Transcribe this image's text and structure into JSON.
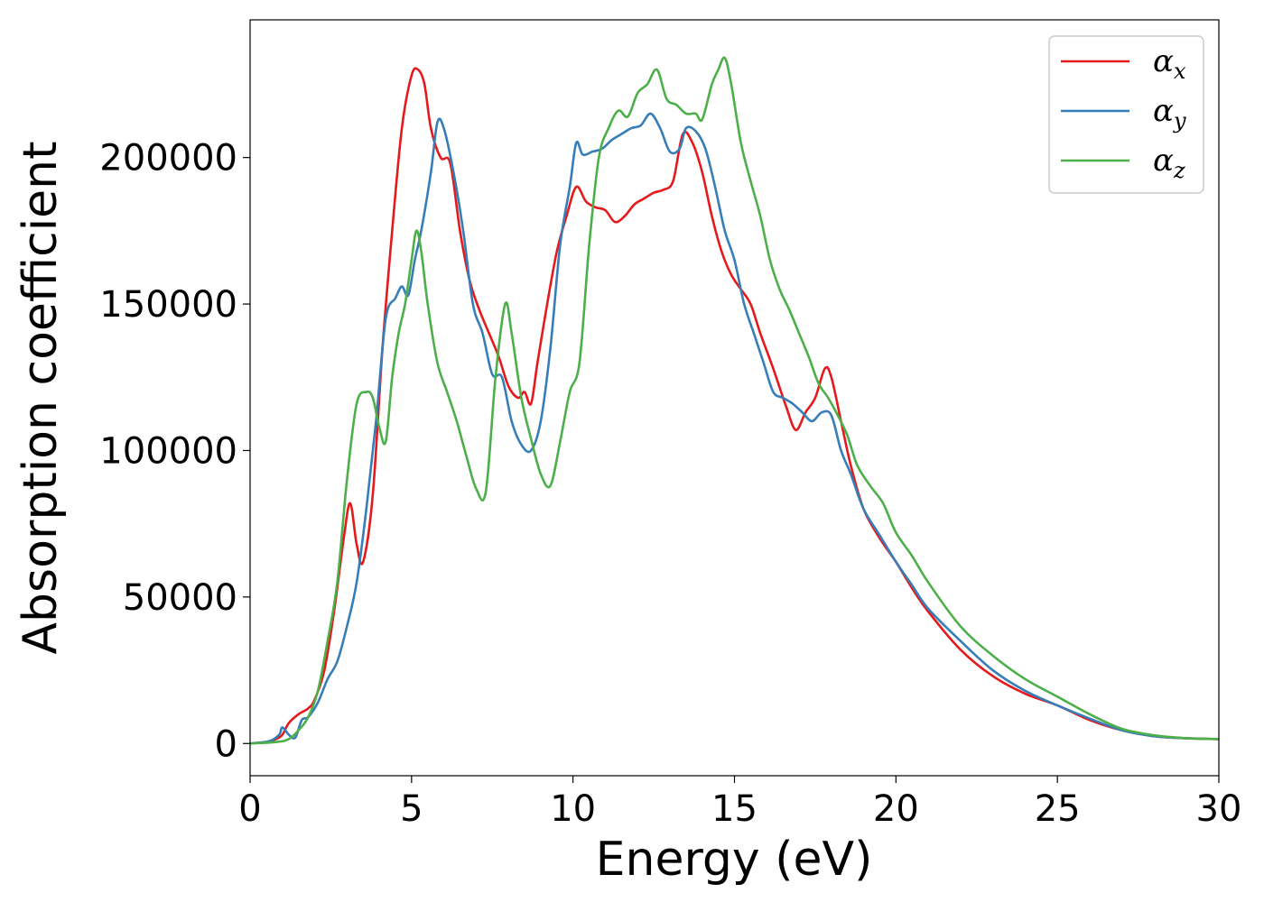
{
  "chart_data": {
    "type": "line",
    "title": "",
    "xlabel": "Energy (eV)",
    "ylabel": "Absorption coefficient",
    "xlim": [
      0,
      30
    ],
    "ylim": [
      -11000,
      247000
    ],
    "xticks": [
      0,
      5,
      10,
      15,
      20,
      25,
      30
    ],
    "xtick_labels": [
      "0",
      "5",
      "10",
      "15",
      "20",
      "25",
      "30"
    ],
    "yticks": [
      0,
      50000,
      100000,
      150000,
      200000
    ],
    "ytick_labels": [
      "0",
      "50000",
      "100000",
      "150000",
      "200000"
    ],
    "grid": false,
    "legend_position": "top-right",
    "series": [
      {
        "name": "αx",
        "symbol": "α",
        "subscript": "x",
        "color": "#e41a1c",
        "x": [
          0,
          0.5,
          0.8,
          1.0,
          1.2,
          1.5,
          1.8,
          2.0,
          2.3,
          2.6,
          2.9,
          3.1,
          3.3,
          3.5,
          3.8,
          4.1,
          4.4,
          4.7,
          5.0,
          5.2,
          5.4,
          5.6,
          5.9,
          6.2,
          6.5,
          6.8,
          7.1,
          7.4,
          7.7,
          8.0,
          8.3,
          8.5,
          8.7,
          8.9,
          9.2,
          9.5,
          9.8,
          10.1,
          10.4,
          10.7,
          11.0,
          11.3,
          11.6,
          11.9,
          12.2,
          12.5,
          12.8,
          13.1,
          13.4,
          13.7,
          14.0,
          14.3,
          14.6,
          14.9,
          15.2,
          15.5,
          15.8,
          16.2,
          16.6,
          16.9,
          17.2,
          17.5,
          17.8,
          18.0,
          18.3,
          18.6,
          19.0,
          19.5,
          20.0,
          20.5,
          21.0,
          22.0,
          23.0,
          24.0,
          25.0,
          26.0,
          27.0,
          28.0,
          29.0,
          30.0
        ],
        "y": [
          0,
          500,
          1500,
          3000,
          7000,
          10000,
          12000,
          15000,
          25000,
          45000,
          70000,
          82000,
          68000,
          62000,
          85000,
          135000,
          175000,
          210000,
          228000,
          230000,
          225000,
          210000,
          200000,
          198000,
          175000,
          158000,
          148000,
          140000,
          132000,
          122000,
          118000,
          120000,
          116000,
          130000,
          150000,
          168000,
          180000,
          190000,
          185000,
          183000,
          182000,
          178000,
          180000,
          184000,
          186000,
          188000,
          189000,
          192000,
          208000,
          205000,
          195000,
          180000,
          168000,
          160000,
          155000,
          150000,
          140000,
          128000,
          115000,
          107000,
          113000,
          118000,
          128000,
          125000,
          110000,
          95000,
          80000,
          70000,
          62000,
          53000,
          45000,
          32000,
          23000,
          17000,
          13000,
          8000,
          4500,
          2500,
          1800,
          1500
        ]
      },
      {
        "name": "αy",
        "symbol": "α",
        "subscript": "y",
        "color": "#377eb8",
        "x": [
          0,
          0.6,
          0.9,
          1.0,
          1.2,
          1.4,
          1.6,
          1.8,
          2.1,
          2.4,
          2.7,
          3.0,
          3.3,
          3.6,
          3.9,
          4.2,
          4.5,
          4.7,
          4.9,
          5.1,
          5.3,
          5.6,
          5.8,
          6.0,
          6.3,
          6.6,
          6.9,
          7.2,
          7.5,
          7.8,
          8.1,
          8.4,
          8.7,
          9.0,
          9.3,
          9.6,
          9.9,
          10.1,
          10.3,
          10.6,
          10.9,
          11.2,
          11.5,
          11.8,
          12.1,
          12.4,
          12.7,
          13.0,
          13.3,
          13.5,
          13.8,
          14.1,
          14.4,
          14.7,
          15.0,
          15.3,
          15.6,
          15.9,
          16.2,
          16.5,
          16.8,
          17.1,
          17.4,
          17.7,
          18.0,
          18.3,
          18.6,
          19.0,
          19.5,
          20.0,
          20.5,
          21.0,
          22.0,
          23.0,
          24.0,
          25.0,
          26.0,
          27.0,
          28.0,
          29.0,
          30.0
        ],
        "y": [
          0,
          800,
          3000,
          5500,
          3000,
          2000,
          8000,
          9000,
          14000,
          22000,
          28000,
          40000,
          55000,
          80000,
          110000,
          145000,
          152000,
          156000,
          153000,
          165000,
          175000,
          195000,
          212000,
          210000,
          195000,
          175000,
          150000,
          140000,
          126000,
          125000,
          110000,
          102000,
          100000,
          110000,
          135000,
          170000,
          190000,
          205000,
          201000,
          202000,
          203000,
          206000,
          208000,
          210000,
          211000,
          215000,
          210000,
          202000,
          203000,
          210000,
          209000,
          203000,
          190000,
          175000,
          165000,
          150000,
          140000,
          130000,
          120000,
          118000,
          116000,
          113000,
          110000,
          113000,
          112000,
          100000,
          92000,
          80000,
          71000,
          62000,
          54000,
          46000,
          35000,
          25000,
          18000,
          13000,
          8500,
          4500,
          2500,
          1800,
          1500
        ]
      },
      {
        "name": "αz",
        "symbol": "α",
        "subscript": "z",
        "color": "#4daf4a",
        "x": [
          0,
          0.8,
          1.2,
          1.5,
          1.8,
          2.1,
          2.4,
          2.7,
          3.0,
          3.3,
          3.6,
          3.8,
          4.0,
          4.2,
          4.4,
          4.6,
          4.8,
          5.0,
          5.15,
          5.3,
          5.5,
          5.8,
          6.1,
          6.4,
          6.7,
          7.0,
          7.3,
          7.6,
          7.9,
          8.1,
          8.4,
          8.7,
          9.0,
          9.3,
          9.6,
          9.9,
          10.2,
          10.5,
          10.8,
          11.1,
          11.4,
          11.7,
          12.0,
          12.3,
          12.6,
          12.9,
          13.2,
          13.5,
          13.8,
          14.0,
          14.3,
          14.5,
          14.7,
          14.9,
          15.2,
          15.5,
          15.8,
          16.1,
          16.4,
          16.7,
          17.0,
          17.3,
          17.6,
          17.9,
          18.2,
          18.5,
          18.8,
          19.2,
          19.6,
          20.0,
          20.5,
          21.0,
          22.0,
          23.0,
          24.0,
          25.0,
          26.0,
          27.0,
          28.0,
          29.0,
          30.0
        ],
        "y": [
          0,
          500,
          1500,
          4500,
          9000,
          18000,
          35000,
          55000,
          90000,
          116000,
          120000,
          118000,
          108000,
          103000,
          125000,
          140000,
          150000,
          165000,
          175000,
          168000,
          150000,
          130000,
          120000,
          110000,
          98000,
          87000,
          86000,
          125000,
          150000,
          140000,
          118000,
          104000,
          92000,
          88000,
          103000,
          120000,
          130000,
          170000,
          200000,
          210000,
          216000,
          214000,
          222000,
          225000,
          230000,
          220000,
          218000,
          215000,
          215000,
          213000,
          225000,
          230000,
          234000,
          225000,
          205000,
          192000,
          180000,
          165000,
          155000,
          148000,
          140000,
          132000,
          123000,
          118000,
          112000,
          105000,
          95000,
          88000,
          82000,
          72000,
          64000,
          55000,
          40000,
          30000,
          22000,
          16000,
          10000,
          5000,
          2800,
          1800,
          1500
        ]
      }
    ]
  }
}
